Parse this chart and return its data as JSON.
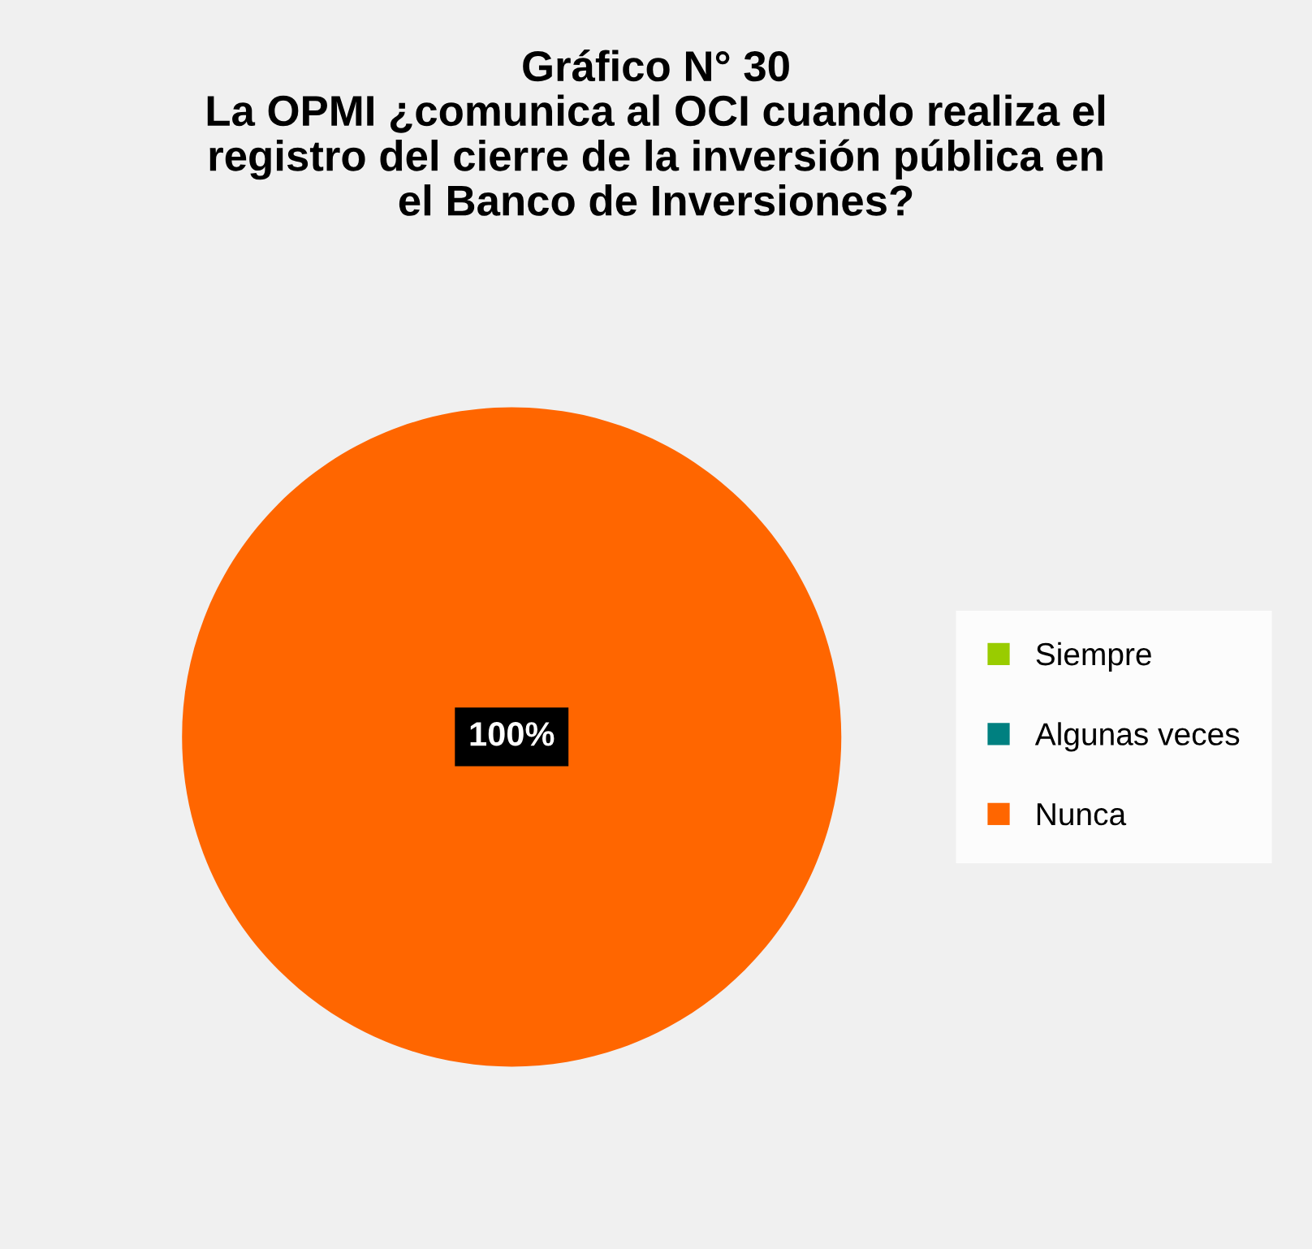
{
  "chart_data": {
    "type": "pie",
    "title": "Gráfico N° 30\nLa OPMI ¿comunica al OCI cuando realiza el\nregistro del cierre de la inversión pública en\nel Banco de Inversiones?",
    "categories": [
      "Siempre",
      "Algunas veces",
      "Nunca"
    ],
    "values": [
      0,
      0,
      100
    ],
    "colors": [
      "#99cc00",
      "#008080",
      "#ff6600"
    ],
    "value_labels": [
      null,
      null,
      "100%"
    ],
    "legend": "right"
  }
}
